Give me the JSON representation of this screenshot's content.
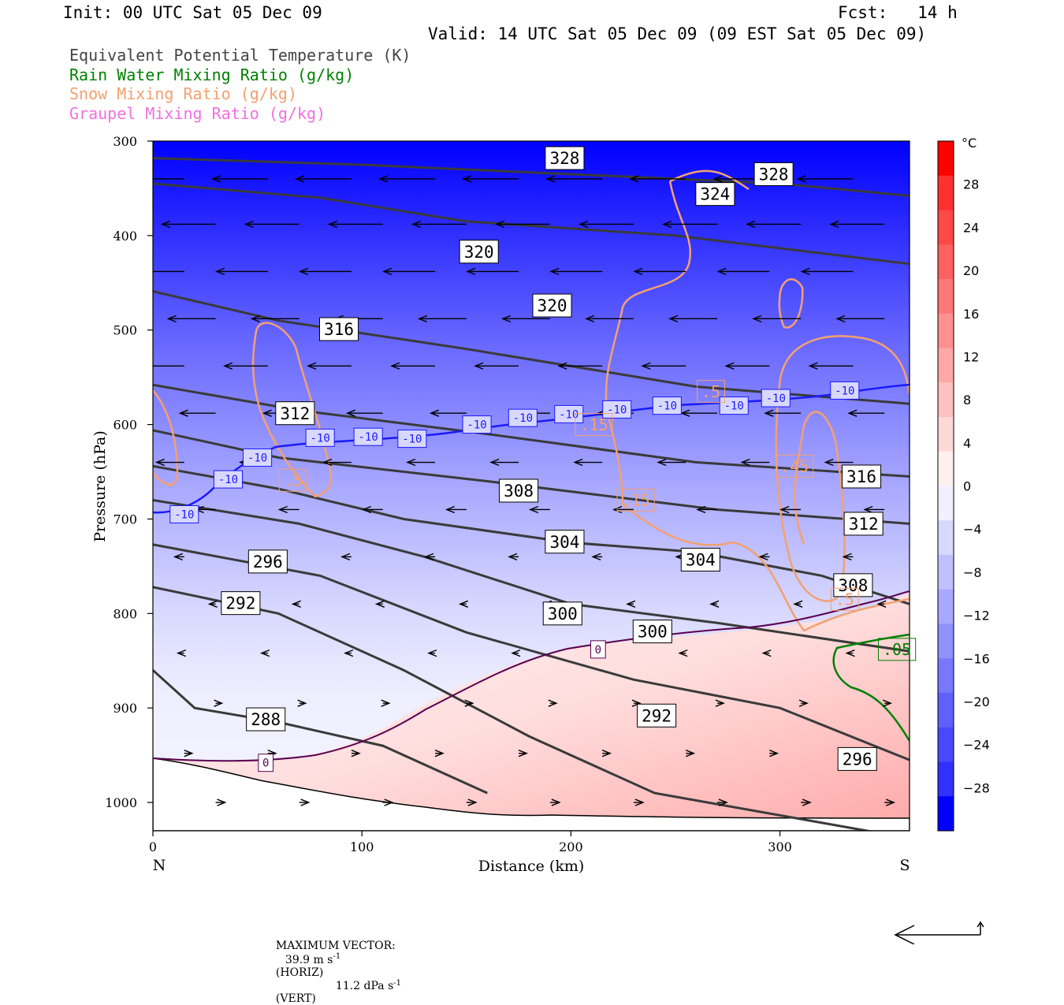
{
  "header": {
    "init": "Init: 00 UTC Sat 05 Dec 09",
    "fcst": "Fcst:   14 h",
    "valid": "Valid: 14 UTC Sat 05 Dec 09 (09 EST Sat 05 Dec 09)"
  },
  "legend": [
    {
      "label": "Equivalent Potential Temperature (K)",
      "color": "#444444"
    },
    {
      "label": "Rain Water Mixing Ratio (g/kg)",
      "color": "#008000"
    },
    {
      "label": "Snow Mixing Ratio (g/kg)",
      "color": "#F4A070"
    },
    {
      "label": "Graupel Mixing Ratio (g/kg)",
      "color": "#F070E0"
    }
  ],
  "chart_data": {
    "type": "contour cross-section",
    "xlabel": "Distance (km)",
    "ylabel": "Pressure (hPa)",
    "x_range": [
      0,
      362
    ],
    "y_range": [
      1030,
      300
    ],
    "x_ticks": [
      0,
      100,
      200,
      300
    ],
    "y_ticks": [
      300,
      400,
      500,
      600,
      700,
      800,
      900,
      1000
    ],
    "x_end_labels": {
      "left": "N",
      "right": "S"
    },
    "colorbar": {
      "unit": "°C",
      "ticks": [
        28,
        24,
        20,
        16,
        12,
        8,
        4,
        0,
        -4,
        -8,
        -12,
        -16,
        -20,
        -24,
        -28
      ],
      "colors": [
        "#ff0000",
        "#ff3030",
        "#ff4848",
        "#ff6060",
        "#ff7878",
        "#ff9090",
        "#ffa8a8",
        "#ffc0c0",
        "#ffd8d8",
        "#fff0f0",
        "#f0f0ff",
        "#d8d8ff",
        "#c0c0ff",
        "#a8a8ff",
        "#9090ff",
        "#7878ff",
        "#6060ff",
        "#4848ff",
        "#3030ff",
        "#0000ff"
      ]
    },
    "theta_e_contours": [
      {
        "value": 328,
        "label_at": [
          197,
          318
        ]
      },
      {
        "value": 328,
        "label_at": [
          297,
          335
        ]
      },
      {
        "value": 324,
        "label_at": [
          269,
          356
        ]
      },
      {
        "value": 320,
        "label_at": [
          156,
          417
        ]
      },
      {
        "value": 320,
        "label_at": [
          191,
          474
        ]
      },
      {
        "value": 316,
        "label_at": [
          89,
          499
        ]
      },
      {
        "value": 316,
        "label_at": [
          339,
          655
        ]
      },
      {
        "value": 312,
        "label_at": [
          68,
          588
        ]
      },
      {
        "value": 312,
        "label_at": [
          340,
          705
        ]
      },
      {
        "value": 308,
        "label_at": [
          175,
          670
        ]
      },
      {
        "value": 308,
        "label_at": [
          335,
          770
        ]
      },
      {
        "value": 304,
        "label_at": [
          197,
          724
        ]
      },
      {
        "value": 304,
        "label_at": [
          262,
          743
        ]
      },
      {
        "value": 300,
        "label_at": [
          196,
          800
        ]
      },
      {
        "value": 300,
        "label_at": [
          239,
          819
        ]
      },
      {
        "value": 296,
        "label_at": [
          55,
          745
        ]
      },
      {
        "value": 296,
        "label_at": [
          337,
          954
        ]
      },
      {
        "value": 292,
        "label_at": [
          42,
          789
        ]
      },
      {
        "value": 292,
        "label_at": [
          241,
          908
        ]
      },
      {
        "value": 288,
        "label_at": [
          54,
          912
        ]
      }
    ],
    "temperature_contour_labels": [
      {
        "value": -10,
        "at": [
          15,
          695
        ]
      },
      {
        "value": -10,
        "at": [
          36,
          658
        ]
      },
      {
        "value": -10,
        "at": [
          50,
          635
        ]
      },
      {
        "value": -10,
        "at": [
          80,
          614
        ]
      },
      {
        "value": -10,
        "at": [
          103,
          613
        ]
      },
      {
        "value": -10,
        "at": [
          124,
          615
        ]
      },
      {
        "value": -10,
        "at": [
          155,
          600
        ]
      },
      {
        "value": -10,
        "at": [
          177,
          593
        ]
      },
      {
        "value": -10,
        "at": [
          199,
          589
        ]
      },
      {
        "value": -10,
        "at": [
          222,
          584
        ]
      },
      {
        "value": -10,
        "at": [
          246,
          580
        ]
      },
      {
        "value": -10,
        "at": [
          278,
          580
        ]
      },
      {
        "value": -10,
        "at": [
          298,
          572
        ]
      },
      {
        "value": -10,
        "at": [
          331,
          564
        ]
      },
      {
        "value": 0,
        "at": [
          213,
          838
        ]
      },
      {
        "value": 0,
        "at": [
          54,
          958
        ]
      }
    ],
    "snow_labels": [
      {
        "value": ".5",
        "at": [
          267,
          565
        ]
      },
      {
        "value": ".15",
        "at": [
          211,
          600
        ]
      },
      {
        "value": ".5",
        "at": [
          67,
          659
        ]
      },
      {
        "value": ".45",
        "at": [
          307,
          644
        ]
      },
      {
        "value": ".15",
        "at": [
          231,
          680
        ]
      },
      {
        "value": ".5",
        "at": [
          331,
          785
        ]
      }
    ],
    "rain_labels": [
      {
        "value": ".05",
        "at": [
          356,
          838
        ]
      }
    ],
    "max_vector": {
      "prefix": "MAXIMUM VECTOR:",
      "horiz": "39.9 m s",
      "horiz_sup": "-1",
      "horiz_tag": "(HORIZ)",
      "vert": "11.2 dPa s",
      "vert_sup": "-1",
      "vert_tag": "(VERT)"
    }
  }
}
